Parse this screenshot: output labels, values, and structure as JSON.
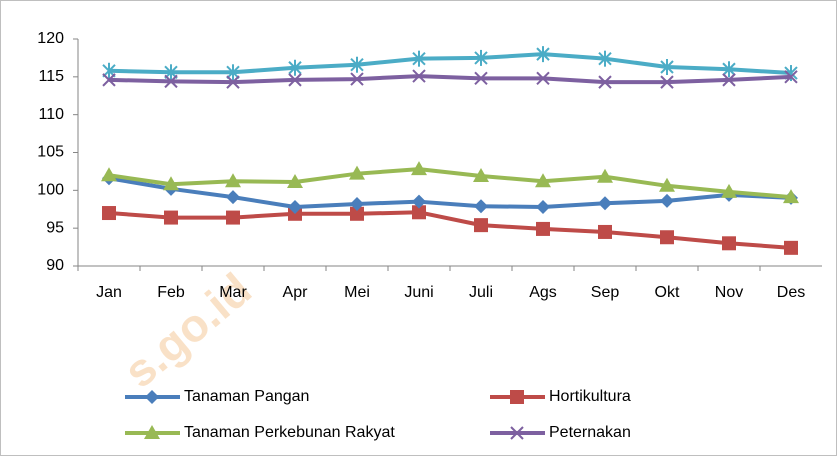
{
  "chart_data": {
    "type": "line",
    "categories": [
      "Jan",
      "Feb",
      "Mar",
      "Apr",
      "Mei",
      "Juni",
      "Juli",
      "Ags",
      "Sep",
      "Okt",
      "Nov",
      "Des"
    ],
    "ylim": [
      90,
      120
    ],
    "yticks": [
      90,
      95,
      100,
      105,
      110,
      115,
      120
    ],
    "watermark": "s.go.id",
    "series": [
      {
        "color": "#4bacc6",
        "marker": "asterisk",
        "values": [
          115.8,
          115.6,
          115.6,
          116.2,
          116.6,
          117.4,
          117.5,
          118.0,
          117.4,
          116.3,
          116.0,
          115.5
        ]
      },
      {
        "name": "Peternakan",
        "color": "#7d60a0",
        "marker": "x",
        "values": [
          114.6,
          114.4,
          114.3,
          114.6,
          114.7,
          115.1,
          114.8,
          114.8,
          114.3,
          114.3,
          114.6,
          115.0
        ]
      },
      {
        "name": "Hortikultura",
        "color": "#be4b48",
        "marker": "square",
        "values": [
          97.0,
          96.4,
          96.4,
          96.9,
          96.9,
          97.1,
          95.4,
          94.9,
          94.5,
          93.8,
          93.0,
          92.4
        ]
      },
      {
        "name": "Tanaman Pangan",
        "color": "#4a7ebb",
        "marker": "diamond",
        "values": [
          101.6,
          100.2,
          99.1,
          97.8,
          98.2,
          98.5,
          97.9,
          97.8,
          98.3,
          98.6,
          99.4,
          99.0
        ]
      },
      {
        "name": "Tanaman Perkebunan Rakyat",
        "color": "#98b954",
        "marker": "triangle",
        "values": [
          102.0,
          100.8,
          101.2,
          101.1,
          102.2,
          102.8,
          101.9,
          101.2,
          101.8,
          100.6,
          99.8,
          99.1
        ]
      }
    ]
  }
}
